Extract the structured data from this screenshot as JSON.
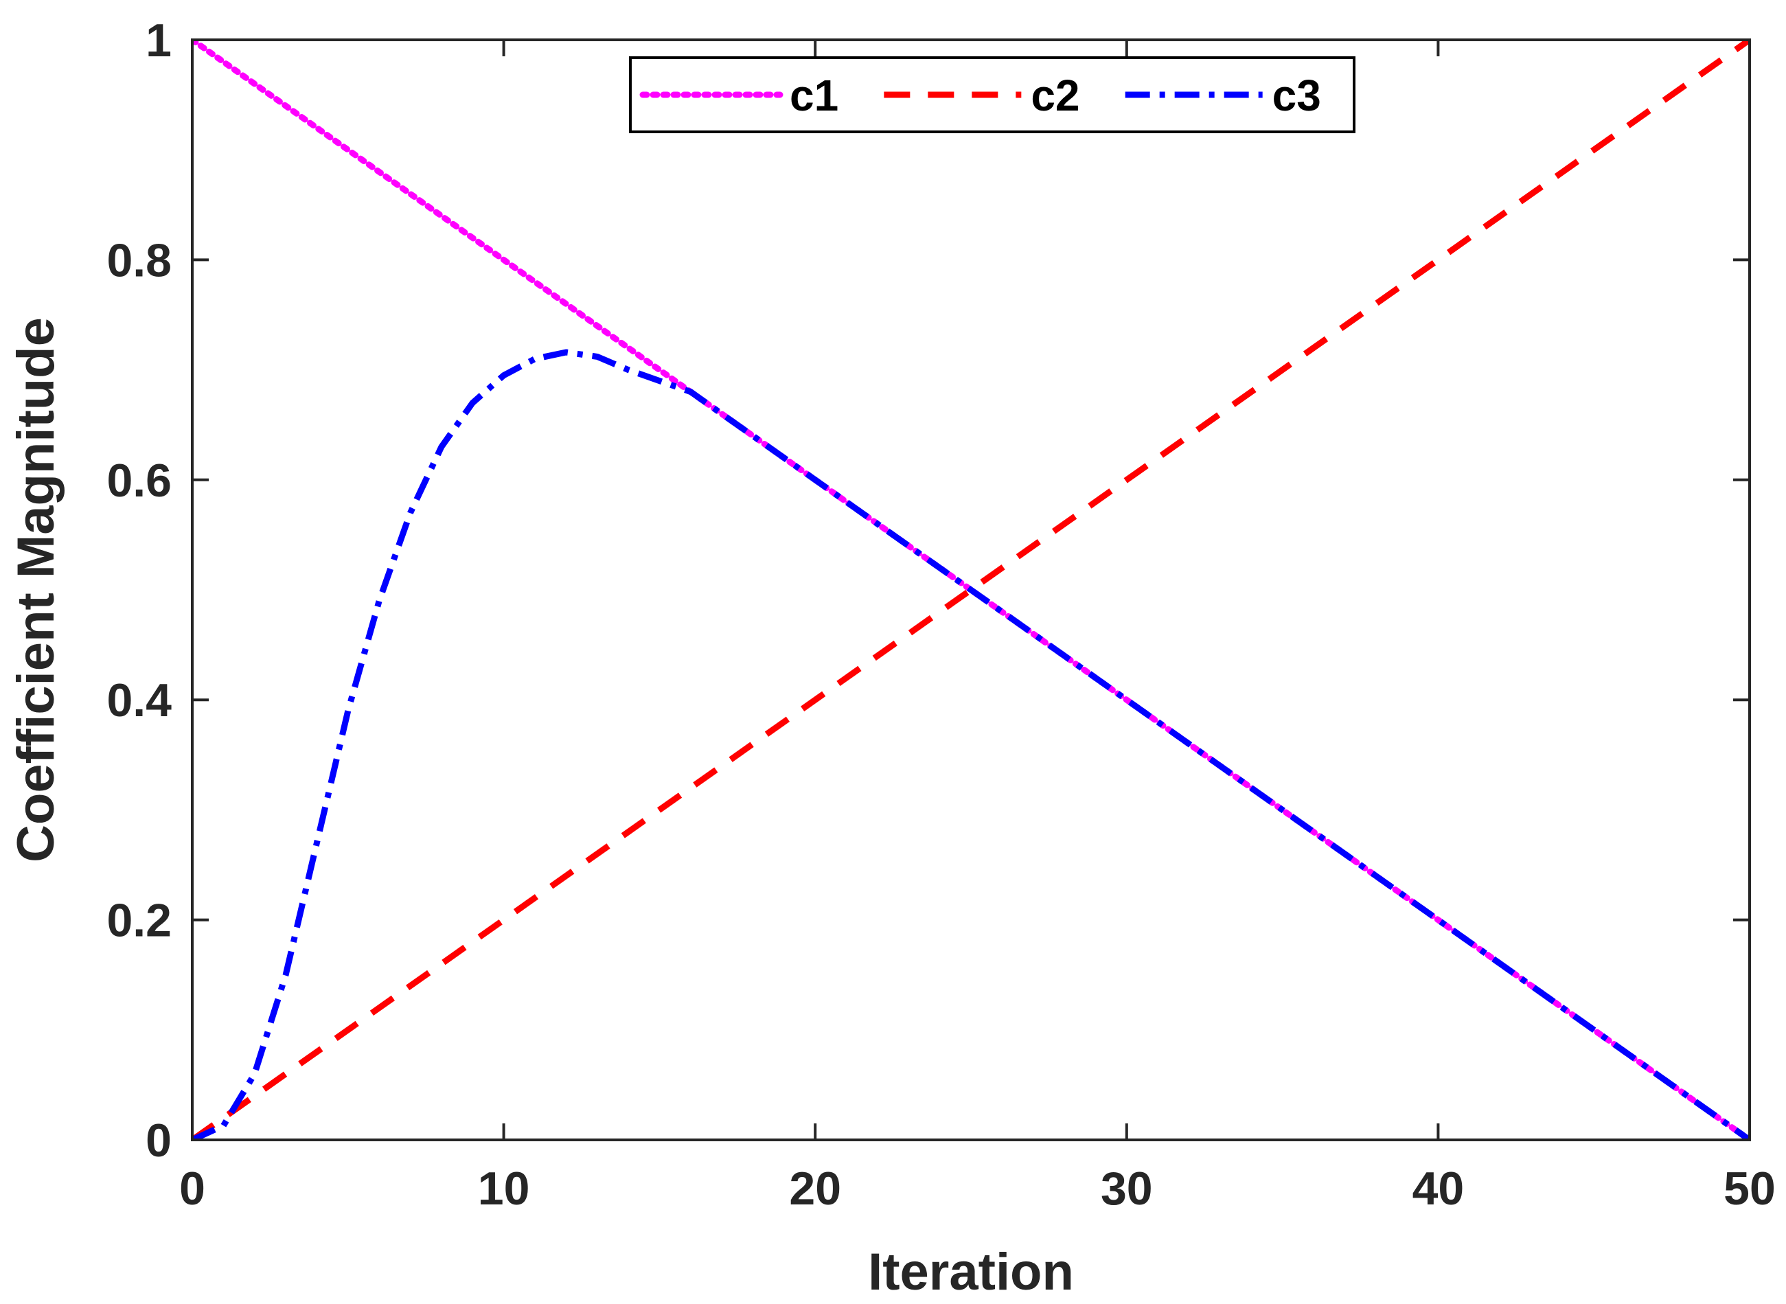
{
  "chart_data": {
    "type": "line",
    "xlabel": "Iteration",
    "ylabel": "Coefficient  Magnitude",
    "xlim": [
      0,
      50
    ],
    "ylim": [
      0,
      1
    ],
    "xticks": [
      0,
      10,
      20,
      30,
      40,
      50
    ],
    "yticks": [
      0,
      0.2,
      0.4,
      0.6,
      0.8,
      1
    ],
    "xtick_labels": [
      "0",
      "10",
      "20",
      "30",
      "40",
      "50"
    ],
    "ytick_labels": [
      "0",
      "0.2",
      "0.4",
      "0.6",
      "0.8",
      "1"
    ],
    "grid": false,
    "legend_position": "top-center",
    "series": [
      {
        "name": "c1",
        "color": "#ff00ff",
        "style": "dotted",
        "x": [
          0,
          50
        ],
        "y": [
          1,
          0
        ]
      },
      {
        "name": "c2",
        "color": "#ff0000",
        "style": "dashed",
        "x": [
          0,
          50
        ],
        "y": [
          0,
          1
        ]
      },
      {
        "name": "c3",
        "color": "#0000ff",
        "style": "dash-dot",
        "x": [
          0,
          1,
          2,
          3,
          4,
          5,
          6,
          7,
          8,
          9,
          10,
          11,
          12,
          13,
          14,
          15,
          16,
          17,
          18,
          20,
          22,
          24,
          25,
          26,
          28,
          30,
          32,
          34,
          36,
          38,
          40,
          42,
          44,
          46,
          48,
          50
        ],
        "y": [
          0,
          0.013,
          0.06,
          0.15,
          0.27,
          0.39,
          0.49,
          0.57,
          0.63,
          0.67,
          0.695,
          0.71,
          0.716,
          0.712,
          0.7,
          0.69,
          0.68,
          0.66,
          0.64,
          0.6,
          0.56,
          0.52,
          0.5,
          0.48,
          0.44,
          0.4,
          0.36,
          0.32,
          0.28,
          0.24,
          0.2,
          0.16,
          0.12,
          0.08,
          0.04,
          0
        ]
      }
    ]
  }
}
